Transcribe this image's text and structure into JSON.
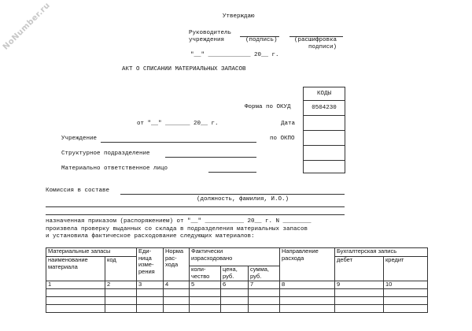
{
  "watermark": "NoNumber.ru",
  "approval": {
    "title": "Утверждаю",
    "head_line1": "Руководитель",
    "head_line2": "учреждения",
    "signature": "(подпись)",
    "decoding_line1": "(расшифровка",
    "decoding_line2": "подписи)",
    "date": "\"__\" ____________ 20__ г."
  },
  "header": {
    "title": "АКТ О СПИСАНИИ МАТЕРИАЛЬНЫХ ЗАПАСОВ",
    "date": "от \"__\" _______ 20__ г."
  },
  "codes": {
    "title": "КОДЫ",
    "form_label": "Форма по ОКУД",
    "form_code": "0504230",
    "date_label": "Дата",
    "okpo_label": "по ОКПО"
  },
  "fields": {
    "institution": "Учреждение",
    "department": "Структурное подразделение",
    "responsible": "Материально ответственное лицо",
    "commission": "Комиссия в составе",
    "commission_hint": "(должность, фамилия, И.О.)",
    "order": "назначенная приказом (распоряжением) от \"__\" ___________ 20__ г. N ________",
    "text1": "произвела проверку выданных со склада в подразделения материальных  запасов",
    "text2": "и установила фактическое расходование следующих материалов:"
  },
  "table": {
    "headers": {
      "materials": "Материальные запасы",
      "name": "наименование\nматериала",
      "code": "код",
      "unit": "Еди-\nница\nизме-\nрения",
      "norm": "Норма\nрас-\nхода",
      "actual": "Фактически\nизрасходовано",
      "qty": "коли-\nчество",
      "price": "цена,\nруб.",
      "sum": "сумма,\nруб.",
      "direction": "Направление\nрасхода",
      "accounting": "Бухгалтерская запись",
      "debit": "дебет",
      "credit": "кредит"
    },
    "numbers": [
      "1",
      "2",
      "3",
      "4",
      "5",
      "6",
      "7",
      "8",
      "9",
      "10"
    ]
  }
}
